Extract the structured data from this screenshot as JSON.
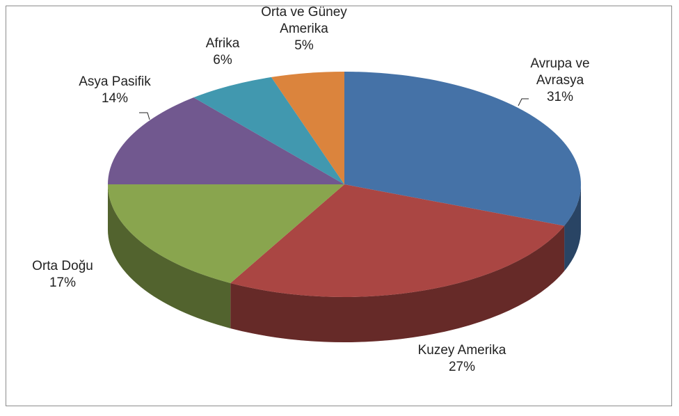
{
  "chart_data": {
    "type": "pie",
    "categories": [
      "Avrupa ve Avrasya",
      "Kuzey Amerika",
      "Orta Doğu",
      "Asya Pasifik",
      "Afrika",
      "Orta ve Güney Amerika"
    ],
    "values": [
      31,
      27,
      17,
      14,
      6,
      5
    ],
    "value_labels": [
      "31%",
      "27%",
      "17%",
      "14%",
      "6%",
      "5%"
    ],
    "colors": [
      "#4572a7",
      "#aa4643",
      "#89a54e",
      "#71588f",
      "#4198af",
      "#db843d"
    ],
    "three_d": true
  }
}
